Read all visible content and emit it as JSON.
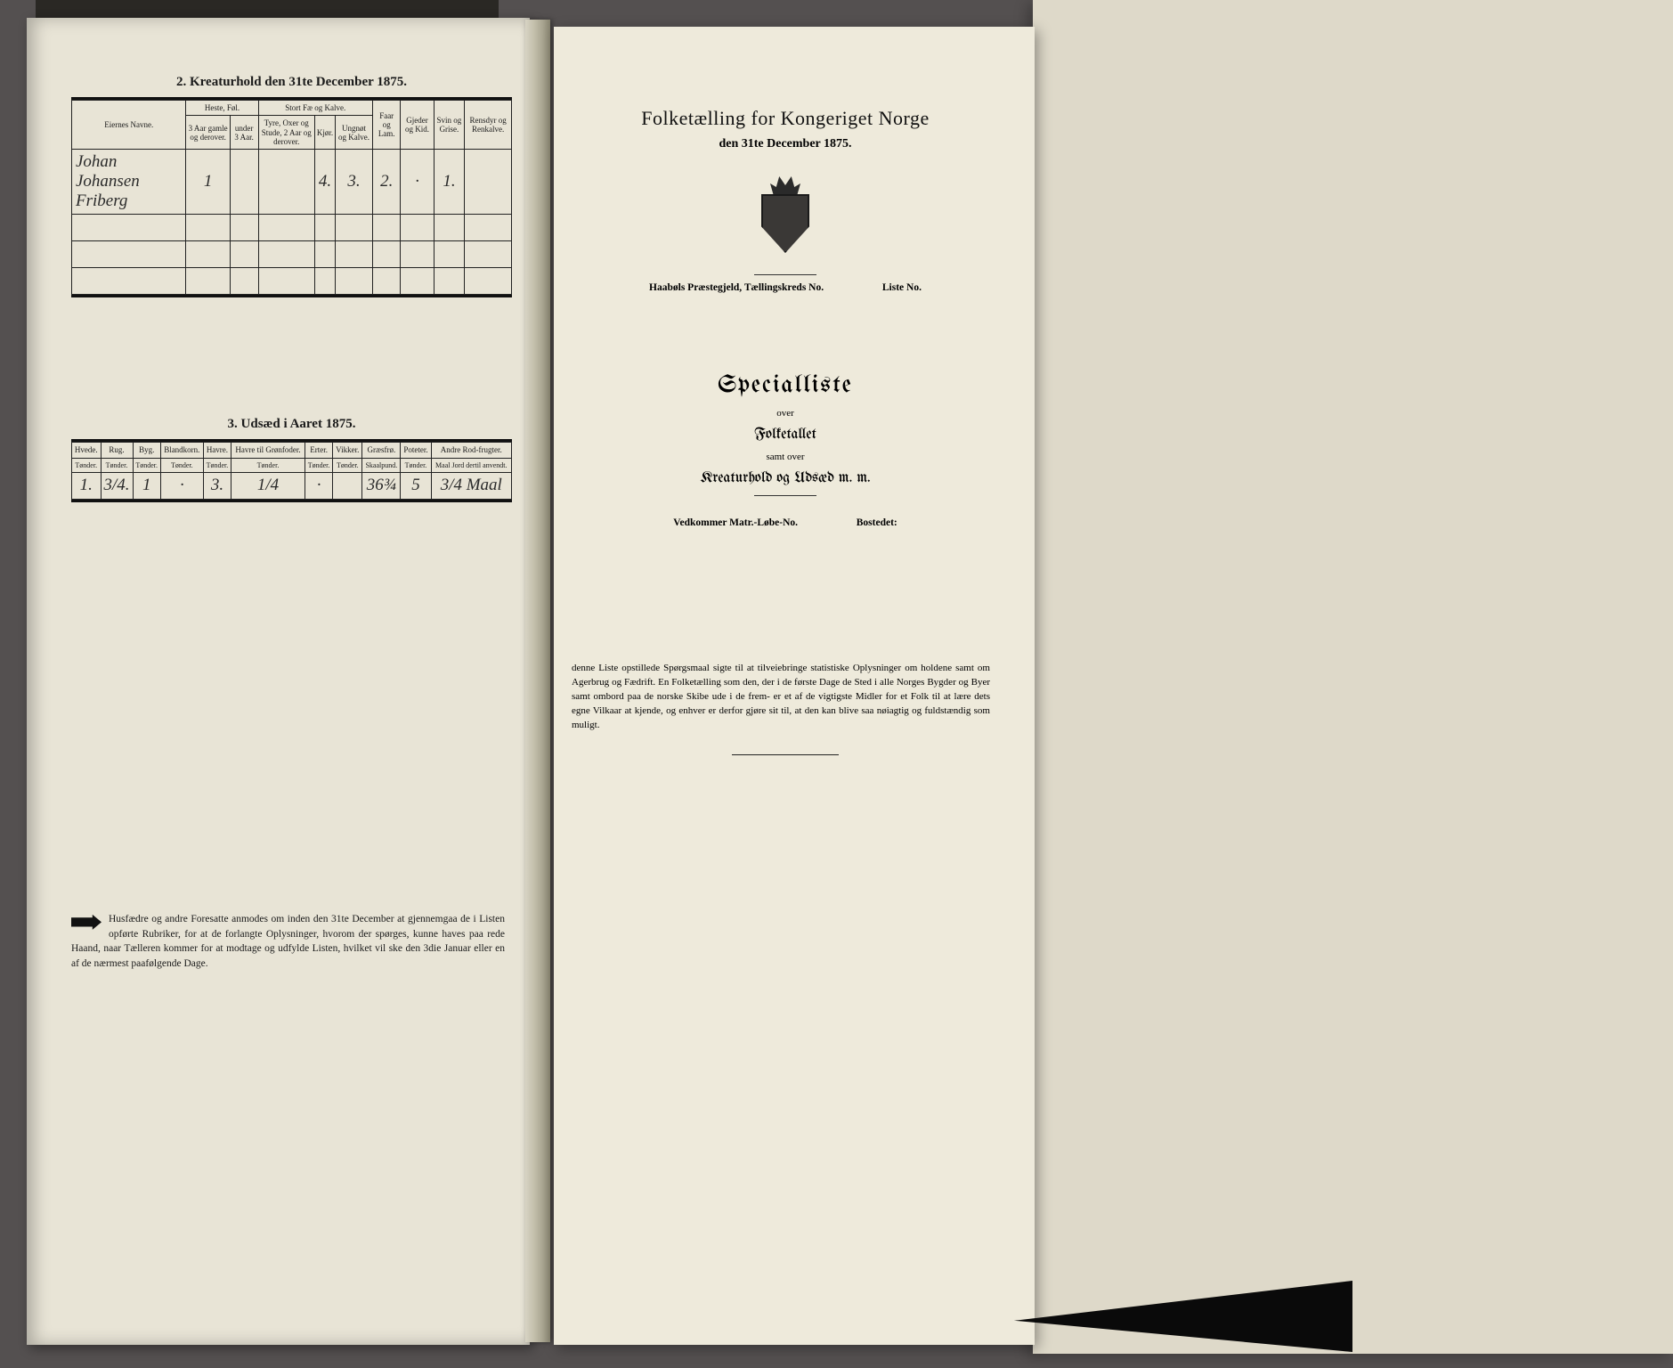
{
  "left_page": {
    "section2_title": "2.  Kreaturhold den 31te December 1875.",
    "section3_title": "3.  Udsæd i Aaret 1875.",
    "table2": {
      "col_owner": "Eiernes Navne.",
      "grp_heste": "Heste, Føl.",
      "grp_stort": "Stort Fæ og Kalve.",
      "col_faar": "Faar og Lam.",
      "col_gjed": "Gjeder og Kid.",
      "col_svin": "Svin og Grise.",
      "col_rens": "Rensdyr og Renkalve.",
      "sub_heste1": "3 Aar gamle og derover.",
      "sub_heste2": "under 3 Aar.",
      "sub_stort1": "Tyre, Oxer og Stude, 2 Aar og derover.",
      "sub_stort2": "Kjør.",
      "sub_stort3": "Ungnøt og Kalve.",
      "row1": {
        "owner": "Johan Johansen Friberg",
        "heste1": "1",
        "heste2": "",
        "stort1": "",
        "stort2": "4.",
        "stort3": "3.",
        "faar": "2.",
        "gjed": "·",
        "svin": "1.",
        "rens": ""
      }
    },
    "table3": {
      "cols": [
        "Hvede.",
        "Rug.",
        "Byg.",
        "Blandkorn.",
        "Havre.",
        "Havre til Grønfoder.",
        "Erter.",
        "Vikker.",
        "Græsfrø.",
        "Poteter.",
        "Andre Rod-frugter."
      ],
      "units": [
        "Tønder.",
        "Tønder.",
        "Tønder.",
        "Tønder.",
        "Tønder.",
        "Tønder.",
        "Tønder.",
        "Tønder.",
        "Skaalpund.",
        "Tønder.",
        "Maal Jord dertil anvendt."
      ],
      "row1": [
        "1.",
        "3/4.",
        "1",
        "·",
        "3.",
        "1/4",
        "·",
        "",
        "36¾",
        "5",
        "3/4 Maal"
      ]
    },
    "footnote": "Husfædre og andre Foresatte anmodes om inden den 31te December at gjennemgaa de i Listen opførte Rubriker, for at de forlangte Oplysninger, hvorom der spørges, kunne haves paa rede Haand, naar Tælleren kommer for at modtage og udfylde Listen, hvilket vil ske den 3die Januar eller en af de nærmest paafølgende Dage."
  },
  "right_page": {
    "title_main": "Folketælling for Kongeriget Norge",
    "title_sub": "den 31te December 1875.",
    "parish_line_a": "Haabøls Præstegjeld,  Tællingskreds No.",
    "parish_line_b": "Liste No.",
    "spec_head": "Specialliste",
    "over": "over",
    "folketallet": "Folketallet",
    "samt_over": "samt over",
    "kreatur": "Kreaturhold og Udsæd m. m.",
    "vedk_a": "Vedkommer Matr.-Løbe-No.",
    "vedk_b": "Bostedet:",
    "bottom": "denne Liste opstillede Spørgsmaal sigte til at tilveiebringe statistiske Oplysninger om holdene samt om Agerbrug og Fædrift.  En Folketælling som den, der i de første Dage de Sted i alle Norges Bygder og Byer samt ombord paa de norske Skibe ude i de frem- er et af de vigtigste Midler for et Folk til at lære dets egne Vilkaar at kjende, og enhver er derfor gjøre sit til, at den kan blive saa nøiagtig og fuldstændig som muligt."
  }
}
